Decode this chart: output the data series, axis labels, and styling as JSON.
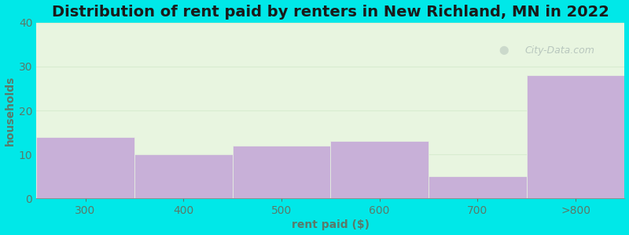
{
  "title": "Distribution of rent paid by renters in New Richland, MN in 2022",
  "xlabel": "rent paid ($)",
  "ylabel": "households",
  "categories": [
    "300",
    "400",
    "500",
    "600",
    "700",
    ">800"
  ],
  "values": [
    14,
    10,
    12,
    13,
    5,
    28
  ],
  "bar_color": "#c8b0d8",
  "ylim": [
    0,
    40
  ],
  "yticks": [
    0,
    10,
    20,
    30,
    40
  ],
  "background_outer": "#00e8e8",
  "background_inner": "#e8f5e0",
  "grid_color": "#d8ecd0",
  "title_fontsize": 14,
  "axis_label_fontsize": 10,
  "tick_fontsize": 10,
  "watermark_text": "City-Data.com",
  "watermark_color": "#b0bfb8",
  "ylabel_color": "#5a7a6a",
  "xlabel_color": "#5a7a6a",
  "title_color": "#1a1a1a",
  "tick_color": "#5a7a6a"
}
